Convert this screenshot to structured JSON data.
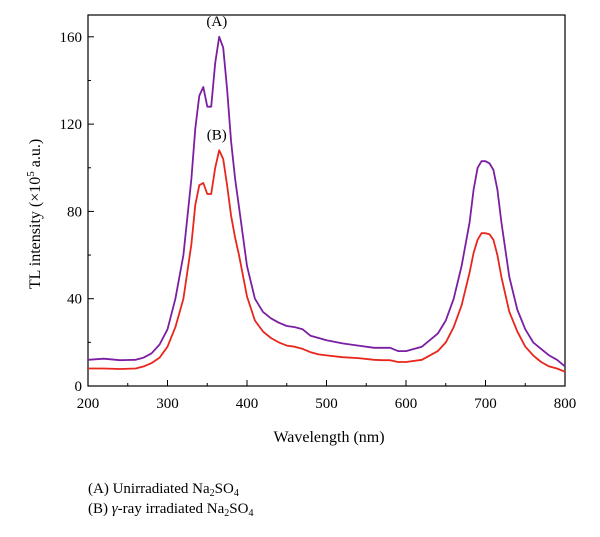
{
  "chart_data": {
    "type": "line",
    "xlabel": "Wavelength (nm)",
    "ylabel_main": "TL intensity (×10",
    "ylabel_sup": "5",
    "ylabel_unit": " a.u.)",
    "xlim": [
      200,
      800
    ],
    "ylim": [
      0,
      170
    ],
    "xticks": [
      200,
      300,
      400,
      500,
      600,
      700,
      800
    ],
    "yticks": [
      0,
      40,
      80,
      120,
      160
    ],
    "grid": false,
    "series": [
      {
        "name": "(A)",
        "color": "#7b1fa2",
        "x": [
          200,
          220,
          240,
          260,
          270,
          280,
          290,
          300,
          310,
          320,
          330,
          335,
          340,
          345,
          350,
          355,
          360,
          365,
          370,
          375,
          380,
          385,
          390,
          400,
          410,
          420,
          430,
          440,
          450,
          460,
          470,
          480,
          490,
          500,
          520,
          540,
          560,
          570,
          580,
          590,
          600,
          620,
          640,
          650,
          660,
          670,
          680,
          685,
          690,
          695,
          700,
          705,
          710,
          715,
          720,
          730,
          740,
          750,
          760,
          770,
          780,
          790,
          800
        ],
        "y": [
          12,
          12.5,
          11.8,
          12,
          13,
          15,
          19,
          26,
          40,
          60,
          95,
          118,
          133,
          137,
          128,
          128,
          148,
          160,
          155,
          136,
          112,
          95,
          82,
          55,
          40,
          34,
          31,
          29,
          27.5,
          27,
          26,
          23,
          22,
          21,
          19.5,
          18.5,
          17.5,
          17.5,
          17.5,
          16,
          16,
          18,
          24,
          30,
          40,
          55,
          75,
          90,
          100,
          103,
          103,
          102,
          99,
          90,
          75,
          50,
          35,
          26,
          20,
          17,
          14,
          12,
          9
        ]
      },
      {
        "name": "(B)",
        "color": "#e8261c",
        "x": [
          200,
          220,
          240,
          260,
          270,
          280,
          290,
          300,
          310,
          320,
          330,
          335,
          340,
          345,
          350,
          355,
          360,
          365,
          370,
          375,
          380,
          385,
          390,
          400,
          410,
          420,
          430,
          440,
          450,
          460,
          470,
          480,
          490,
          500,
          520,
          540,
          560,
          570,
          580,
          590,
          600,
          620,
          640,
          650,
          660,
          670,
          680,
          685,
          690,
          695,
          700,
          705,
          710,
          715,
          720,
          730,
          740,
          750,
          760,
          770,
          780,
          790,
          800
        ],
        "y": [
          8,
          8,
          7.8,
          8,
          9,
          10.5,
          13,
          18,
          27,
          40,
          65,
          83,
          92,
          93,
          88,
          88,
          100,
          108,
          104,
          92,
          78,
          68,
          60,
          41,
          30,
          25,
          22,
          20,
          18.5,
          18,
          17,
          15.5,
          14.5,
          14,
          13.2,
          12.8,
          12,
          11.8,
          11.8,
          11,
          11,
          12,
          16,
          20,
          27,
          37,
          52,
          61,
          67,
          70,
          70,
          69.5,
          67,
          60,
          50,
          34,
          25,
          18,
          14,
          11,
          9,
          8,
          6.5
        ]
      }
    ],
    "annotations": [
      {
        "text": "(A)",
        "x": 362,
        "y": 165
      },
      {
        "text": "(B)",
        "x": 362,
        "y": 113
      }
    ]
  },
  "legend": {
    "a_prefix": "(A) Unirradiated Na",
    "a_sub1": "2",
    "a_mid": "SO",
    "a_sub2": "4",
    "b_prefix": "(B) ",
    "b_gamma": "γ",
    "b_mid": "-ray irradiated Na",
    "b_sub1": "2",
    "b_so": "SO",
    "b_sub2": "4"
  }
}
